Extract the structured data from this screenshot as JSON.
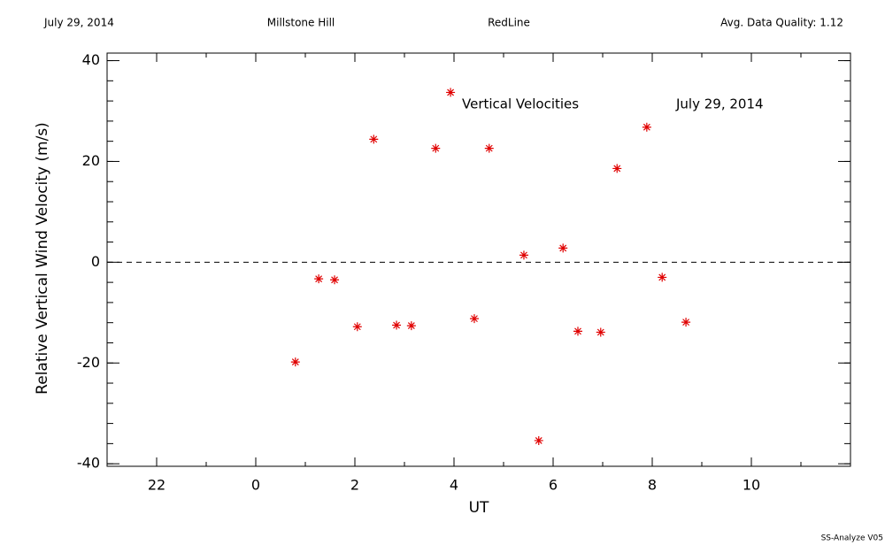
{
  "chart_data": {
    "type": "scatter",
    "header": [
      "July 29, 2014",
      "Millstone Hill",
      "RedLine",
      "Avg. Data Quality: 1.12"
    ],
    "annotations": [
      "Vertical Velocities",
      "July 29, 2014"
    ],
    "xlabel": "UT",
    "ylabel": "Relative Vertical Wind Velocity (m/s)",
    "footer": "SS-Analyze V05",
    "x": [
      0.8,
      1.27,
      1.59,
      2.05,
      2.38,
      2.84,
      3.14,
      3.63,
      3.93,
      4.41,
      4.71,
      5.41,
      5.71,
      6.2,
      6.5,
      6.96,
      7.29,
      7.89,
      8.2,
      8.68
    ],
    "values": [
      -19.8,
      -3.3,
      -3.5,
      -12.8,
      24.4,
      -12.5,
      -12.6,
      22.6,
      33.7,
      -11.2,
      22.6,
      1.4,
      -35.4,
      2.8,
      -13.7,
      -13.9,
      18.6,
      26.8,
      -3.0,
      -11.9
    ],
    "color": "#e00000",
    "xlim": [
      -3,
      12
    ],
    "xticks": [
      {
        "value": -2,
        "label": "22"
      },
      0,
      2,
      4,
      6,
      8,
      10
    ],
    "ylim": [
      -40.5,
      41.5
    ],
    "yticks": [
      -40,
      -20,
      0,
      20,
      40
    ],
    "reference_line": 0
  }
}
